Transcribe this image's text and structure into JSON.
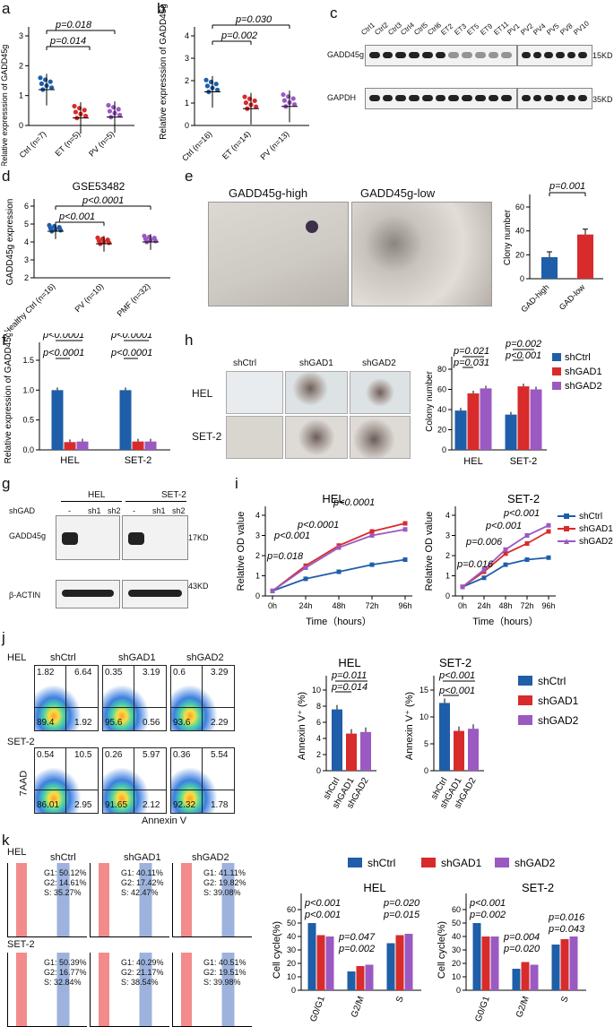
{
  "panels": [
    "a",
    "b",
    "c",
    "d",
    "e",
    "f",
    "g",
    "h",
    "i",
    "j",
    "k"
  ],
  "a": {
    "ylabel": "Relative expresssion of GADD45g",
    "categories": [
      "Ctrl (n=7)",
      "ET (n=5)",
      "PV (n=5)"
    ],
    "p1": "p=0.018",
    "p2": "p=0.014",
    "ticks": [
      "0",
      "1",
      "2",
      "3"
    ]
  },
  "b": {
    "ylabel": "Relative expresssion of GADD45g",
    "categories": [
      "Ctrl (n=16)",
      "ET (n=14)",
      "PV (n=13)"
    ],
    "p1": "p=0.030",
    "p2": "p=0.002",
    "ticks": [
      "0",
      "1",
      "2",
      "3",
      "4"
    ]
  },
  "c": {
    "lanes": [
      "Ctrl1",
      "Ctrl2",
      "Ctrl3",
      "Ctrl4",
      "Ctrl5",
      "Ctrl6",
      "ET2",
      "ET3",
      "ET5",
      "ET9",
      "ET11",
      "PV1",
      "PV2",
      "PV4",
      "PV5",
      "PV8",
      "PV10"
    ],
    "row1": "GADD45g",
    "row2": "GAPDH",
    "kd1": "15KD",
    "kd2": "35KD"
  },
  "d": {
    "title": "GSE53482",
    "ylabel": "GADD45g expression",
    "categories": [
      "Healthy Ctrl (n=16)",
      "PV (n=10)",
      "PMF (n=32)"
    ],
    "p1": "p<0.0001",
    "p2": "p<0.001",
    "ticks": [
      "2",
      "3",
      "4",
      "5",
      "6"
    ]
  },
  "e": {
    "img1": "GADD45g-high",
    "img2": "GADD45g-low",
    "ylabel": "Clony number",
    "p": "p=0.001",
    "categories": [
      "GAD-high",
      "GAD-low"
    ],
    "ticks": [
      "0",
      "20",
      "40",
      "60"
    ]
  },
  "f": {
    "ylabel": "Relative expression of GADD45g",
    "groups": [
      "HEL",
      "SET-2"
    ],
    "p_labels": [
      "p<0.0001",
      "p<0.0001",
      "p<0.0001",
      "p<0.0001"
    ],
    "ticks": [
      "0.0",
      "0.5",
      "1.0",
      "1.5"
    ]
  },
  "g": {
    "groups": [
      "HEL",
      "SET-2"
    ],
    "shgad": "shGAD",
    "lanes": [
      "-",
      "sh1",
      "sh2",
      "-",
      "sh1",
      "sh2"
    ],
    "row1": "GADD45g",
    "row2": "β-ACTIN",
    "kd1": "17KD",
    "kd2": "43KD"
  },
  "h": {
    "cols": [
      "shCtrl",
      "shGAD1",
      "shGAD2"
    ],
    "rows": [
      "HEL",
      "SET-2"
    ],
    "ylabel": "Colony number",
    "p_labels": [
      "p=0.021",
      "p=0.031",
      "p=0.002",
      "p<0.001"
    ],
    "groups": [
      "HEL",
      "SET-2"
    ],
    "ticks": [
      "0",
      "20",
      "40",
      "60",
      "80"
    ],
    "legend": [
      "shCtrl",
      "shGAD1",
      "shGAD2"
    ]
  },
  "i": {
    "titles": [
      "HEL",
      "SET-2"
    ],
    "ylabel": "Relative OD value",
    "xlabel": "Time（hours）",
    "xticks": [
      "0h",
      "24h",
      "48h",
      "72h",
      "96h"
    ],
    "yticks": [
      "0",
      "1",
      "2",
      "3",
      "4"
    ],
    "hel_p": [
      "p<0.0001",
      "p<0.0001",
      "p<0.001",
      "p=0.018"
    ],
    "set2_p": [
      "p<0.001",
      "p<0.001",
      "p=0.006",
      "p=0.016"
    ],
    "legend": [
      "shCtrl",
      "shGAD1",
      "shGAD2"
    ]
  },
  "j": {
    "rows": [
      "HEL",
      "SET-2"
    ],
    "cols": [
      "shCtrl",
      "shGAD1",
      "shGAD2"
    ],
    "quadrants": [
      [
        "1.82",
        "6.64",
        "89.4",
        "1.92"
      ],
      [
        "0.35",
        "3.19",
        "95.6",
        "0.56"
      ],
      [
        "0.6",
        "3.29",
        "93.6",
        "2.29"
      ],
      [
        "0.54",
        "10.5",
        "86.01",
        "2.95"
      ],
      [
        "0.26",
        "5.97",
        "91.65",
        "2.12"
      ],
      [
        "0.36",
        "5.54",
        "92.32",
        "1.78"
      ]
    ],
    "yaxis": "7AAD",
    "xaxis": "Annexin V",
    "bar_titles": [
      "HEL",
      "SET-2"
    ],
    "ylabel": "Annexin V⁺ (%)",
    "hel_p": [
      "p=0.011",
      "p=0.014"
    ],
    "set2_p": [
      "p<0.001",
      "p<0.001"
    ],
    "categories": [
      "shCtrl",
      "shGAD1",
      "shGAD2"
    ],
    "hel_ticks": [
      "0",
      "2",
      "4",
      "6",
      "8",
      "10"
    ],
    "set2_ticks": [
      "0",
      "5",
      "10",
      "15"
    ],
    "legend": [
      "shCtrl",
      "shGAD1",
      "shGAD2"
    ]
  },
  "k": {
    "rows": [
      "HEL",
      "SET-2"
    ],
    "cols": [
      "shCtrl",
      "shGAD1",
      "shGAD2"
    ],
    "stats": [
      [
        "G1: 50.12%",
        "G2: 14.61%",
        "S: 35.27%"
      ],
      [
        "G1: 40.11%",
        "G2: 17.42%",
        "S: 42.47%"
      ],
      [
        "G1: 41.11%",
        "G2: 19.82%",
        "S: 39.08%"
      ],
      [
        "G1: 50.39%",
        "G2: 16.77%",
        "S: 32.84%"
      ],
      [
        "G1: 40.29%",
        "G2: 21.17%",
        "S: 38.54%"
      ],
      [
        "G1: 40.51%",
        "G2: 19.51%",
        "S: 39.98%"
      ]
    ],
    "legend": [
      "shCtrl",
      "shGAD1",
      "shGAD2"
    ],
    "bar_titles": [
      "HEL",
      "SET-2"
    ],
    "ylabel": "Cell cycle(%)",
    "categories": [
      "G0/G1",
      "G2/M",
      "S"
    ],
    "hel_p": [
      "p<0.001",
      "p<0.001",
      "p=0.047",
      "p=0.002",
      "p=0.020",
      "p=0.015"
    ],
    "set2_p": [
      "p<0.001",
      "p=0.002",
      "p=0.004",
      "p=0.020",
      "p=0.016",
      "p=0.043"
    ],
    "ticks": [
      "0",
      "10",
      "20",
      "30",
      "40",
      "50",
      "60"
    ]
  },
  "colors": {
    "shCtrl": "#1f5ea8",
    "shGAD1": "#d82b2b",
    "shGAD2": "#9b59c2",
    "ctrl_dots": "#1f5ea8",
    "et_dots": "#d82b2b",
    "pv_dots": "#9b59c2"
  },
  "chart_data": [
    {
      "panel": "a",
      "type": "scatter",
      "categories": [
        "Ctrl (n=7)",
        "ET (n=5)",
        "PV (n=5)"
      ],
      "series": [
        {
          "values": [
            1.2,
            0.25,
            0.28
          ]
        }
      ],
      "ylim": [
        0,
        3
      ]
    },
    {
      "panel": "b",
      "type": "scatter",
      "categories": [
        "Ctrl (n=16)",
        "ET (n=14)",
        "PV (n=13)"
      ],
      "series": [
        {
          "values": [
            1.5,
            0.75,
            0.85
          ]
        }
      ],
      "ylim": [
        0,
        4
      ]
    },
    {
      "panel": "d",
      "type": "scatter",
      "categories": [
        "Healthy Ctrl (n=16)",
        "PV (n=10)",
        "PMF (n=32)"
      ],
      "series": [
        {
          "values": [
            4.6,
            3.9,
            4.0
          ]
        }
      ],
      "ylim": [
        2,
        6
      ]
    },
    {
      "panel": "e",
      "type": "bar",
      "categories": [
        "GAD-high",
        "GAD-low"
      ],
      "values": [
        18,
        37
      ],
      "ylim": [
        0,
        60
      ]
    },
    {
      "panel": "f",
      "type": "bar",
      "categories": [
        "HEL",
        "SET-2"
      ],
      "series": [
        {
          "name": "shCtrl",
          "values": [
            1.0,
            1.0
          ]
        },
        {
          "name": "shGAD1",
          "values": [
            0.13,
            0.14
          ]
        },
        {
          "name": "shGAD2",
          "values": [
            0.14,
            0.14
          ]
        }
      ],
      "ylim": [
        0,
        1.5
      ]
    },
    {
      "panel": "h",
      "type": "bar",
      "categories": [
        "HEL",
        "SET-2"
      ],
      "series": [
        {
          "name": "shCtrl",
          "values": [
            39,
            35
          ]
        },
        {
          "name": "shGAD1",
          "values": [
            56,
            63
          ]
        },
        {
          "name": "shGAD2",
          "values": [
            61,
            60
          ]
        }
      ],
      "ylim": [
        0,
        80
      ]
    },
    {
      "panel": "i-HEL",
      "type": "line",
      "x": [
        "0h",
        "24h",
        "48h",
        "72h",
        "96h"
      ],
      "series": [
        {
          "name": "shCtrl",
          "values": [
            0.25,
            0.85,
            1.2,
            1.55,
            1.8
          ]
        },
        {
          "name": "shGAD1",
          "values": [
            0.25,
            1.5,
            2.5,
            3.2,
            3.6
          ]
        },
        {
          "name": "shGAD2",
          "values": [
            0.25,
            1.4,
            2.4,
            3.0,
            3.3
          ]
        }
      ],
      "ylim": [
        0,
        4
      ]
    },
    {
      "panel": "i-SET-2",
      "type": "line",
      "x": [
        "0h",
        "24h",
        "48h",
        "72h",
        "96h"
      ],
      "series": [
        {
          "name": "shCtrl",
          "values": [
            0.45,
            0.9,
            1.55,
            1.8,
            1.9
          ]
        },
        {
          "name": "shGAD1",
          "values": [
            0.45,
            1.2,
            2.1,
            2.6,
            3.2
          ]
        },
        {
          "name": "shGAD2",
          "values": [
            0.45,
            1.3,
            2.3,
            3.0,
            3.5
          ]
        }
      ],
      "ylim": [
        0,
        4
      ]
    },
    {
      "panel": "j-HEL",
      "type": "bar",
      "categories": [
        "shCtrl",
        "shGAD1",
        "shGAD2"
      ],
      "values": [
        7.6,
        4.6,
        4.8
      ],
      "ylim": [
        0,
        10
      ]
    },
    {
      "panel": "j-SET-2",
      "type": "bar",
      "categories": [
        "shCtrl",
        "shGAD1",
        "shGAD2"
      ],
      "values": [
        12.6,
        7.4,
        7.8
      ],
      "ylim": [
        0,
        15
      ]
    },
    {
      "panel": "k-HEL",
      "type": "bar",
      "categories": [
        "G0/G1",
        "G2/M",
        "S"
      ],
      "series": [
        {
          "name": "shCtrl",
          "values": [
            50,
            14,
            35
          ]
        },
        {
          "name": "shGAD1",
          "values": [
            41,
            18,
            41
          ]
        },
        {
          "name": "shGAD2",
          "values": [
            40,
            19,
            42
          ]
        }
      ],
      "ylim": [
        0,
        60
      ]
    },
    {
      "panel": "k-SET-2",
      "type": "bar",
      "categories": [
        "G0/G1",
        "G2/M",
        "S"
      ],
      "series": [
        {
          "name": "shCtrl",
          "values": [
            50,
            16,
            34
          ]
        },
        {
          "name": "shGAD1",
          "values": [
            40,
            21,
            38
          ]
        },
        {
          "name": "shGAD2",
          "values": [
            40,
            19,
            40
          ]
        }
      ],
      "ylim": [
        0,
        60
      ]
    }
  ]
}
